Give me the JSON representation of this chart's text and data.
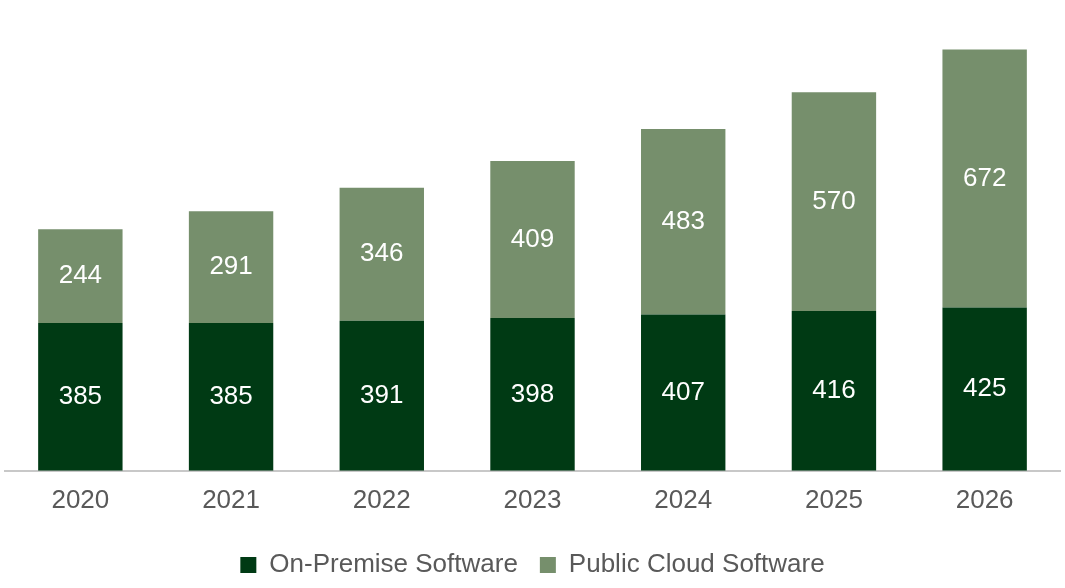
{
  "chart_data": {
    "type": "bar",
    "stacked": true,
    "data_labels": true,
    "legend": "bottom",
    "grid": false,
    "tick_labels": "x",
    "categories": [
      "2020",
      "2021",
      "2022",
      "2023",
      "2024",
      "2025",
      "2026"
    ],
    "series": [
      {
        "name": "On-Premise Software",
        "color": "#003a14",
        "values": [
          385,
          385,
          391,
          398,
          407,
          416,
          425
        ]
      },
      {
        "name": "Public Cloud Software",
        "color": "#768f6c",
        "values": [
          244,
          291,
          346,
          409,
          483,
          570,
          672
        ]
      }
    ]
  }
}
